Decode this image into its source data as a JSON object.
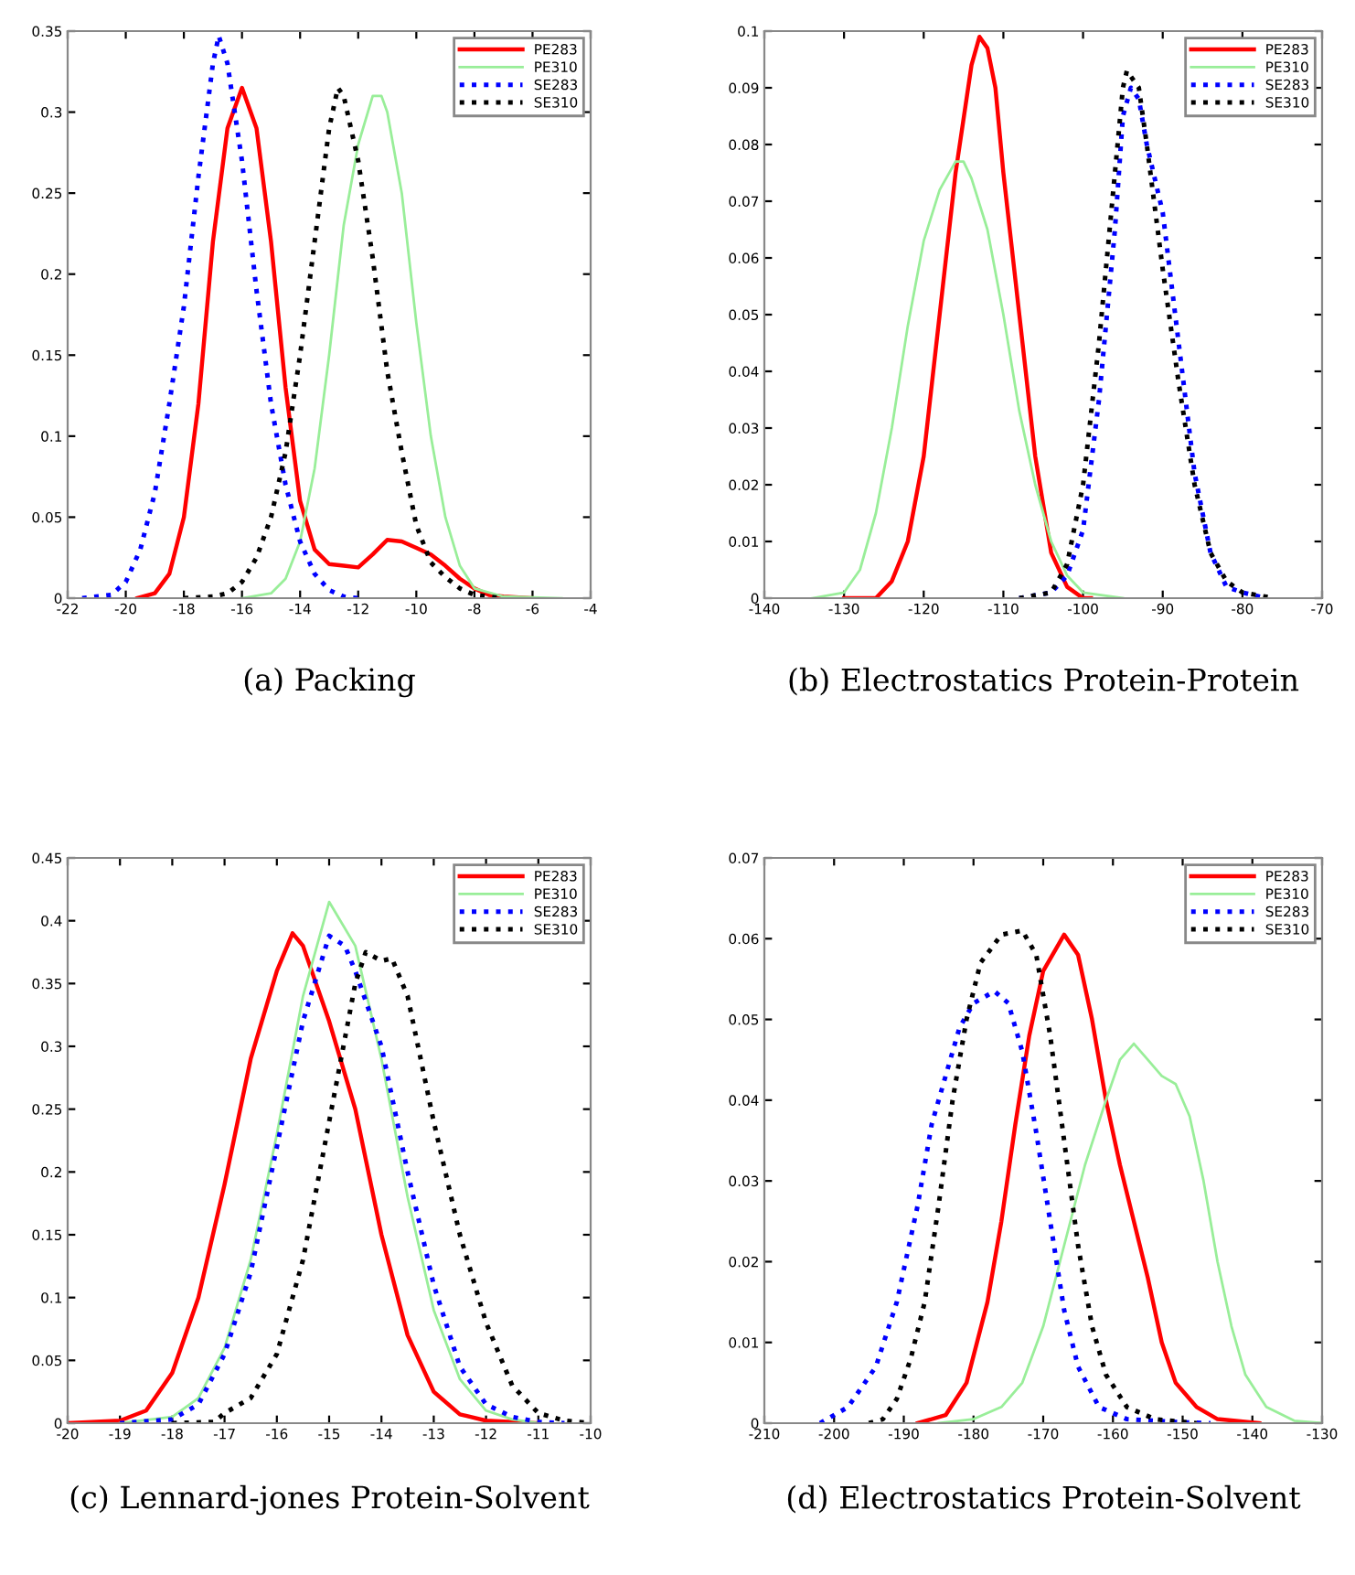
{
  "chart_data": [
    {
      "type": "line",
      "title": "(a) Packing",
      "xlim": [
        -22,
        -4
      ],
      "xticks": [
        -22,
        -20,
        -18,
        -16,
        -14,
        -12,
        -10,
        -8,
        -6,
        -4
      ],
      "ylim": [
        0,
        0.35
      ],
      "yticks": [
        0,
        0.05,
        0.1,
        0.15,
        0.2,
        0.25,
        0.3,
        0.35
      ],
      "grid": false,
      "legend": "top right",
      "series": [
        {
          "name": "PE283",
          "color": "#ff0000",
          "line_style": "solid",
          "x": [
            -19.6,
            -19,
            -18.5,
            -18,
            -17.5,
            -17,
            -16.5,
            -16,
            -15.5,
            -15,
            -14.5,
            -14,
            -13.5,
            -13,
            -12.5,
            -12,
            -11.5,
            -11,
            -10.5,
            -10,
            -9.5,
            -9,
            -8.5,
            -8,
            -7.5,
            -7,
            -6
          ],
          "values": [
            0,
            0.003,
            0.015,
            0.05,
            0.12,
            0.22,
            0.29,
            0.315,
            0.29,
            0.22,
            0.13,
            0.06,
            0.03,
            0.021,
            0.02,
            0.019,
            0.027,
            0.036,
            0.035,
            0.031,
            0.027,
            0.02,
            0.012,
            0.006,
            0.002,
            0.001,
            0
          ]
        },
        {
          "name": "PE310",
          "color": "#99ee99",
          "line_style": "solid",
          "x": [
            -16,
            -15,
            -14.5,
            -14,
            -13.5,
            -13,
            -12.5,
            -12,
            -11.5,
            -11.2,
            -11,
            -10.5,
            -10,
            -9.5,
            -9,
            -8.5,
            -8,
            -7,
            -5
          ],
          "values": [
            0,
            0.003,
            0.012,
            0.035,
            0.08,
            0.15,
            0.23,
            0.28,
            0.31,
            0.31,
            0.3,
            0.25,
            0.17,
            0.1,
            0.05,
            0.02,
            0.006,
            0.001,
            0
          ]
        },
        {
          "name": "SE283",
          "color": "#0000ff",
          "line_style": "dotted",
          "x": [
            -21.5,
            -20.5,
            -20,
            -19.5,
            -19,
            -18.5,
            -18,
            -17.5,
            -17,
            -16.8,
            -16.5,
            -16,
            -15.5,
            -15,
            -14.5,
            -14,
            -13.5,
            -13,
            -12.5,
            -12
          ],
          "values": [
            0,
            0.002,
            0.01,
            0.03,
            0.065,
            0.12,
            0.18,
            0.26,
            0.33,
            0.347,
            0.33,
            0.27,
            0.19,
            0.12,
            0.07,
            0.035,
            0.015,
            0.005,
            0.001,
            0
          ]
        },
        {
          "name": "SE310",
          "color": "#000000",
          "line_style": "dotted",
          "x": [
            -18,
            -17,
            -16.5,
            -16,
            -15.5,
            -15,
            -14.5,
            -14,
            -13.5,
            -13,
            -12.7,
            -12.5,
            -12,
            -11.5,
            -11,
            -10.5,
            -10,
            -9.5,
            -9,
            -8.5,
            -8,
            -7
          ],
          "values": [
            0,
            0.001,
            0.003,
            0.01,
            0.025,
            0.05,
            0.09,
            0.15,
            0.22,
            0.29,
            0.315,
            0.31,
            0.27,
            0.21,
            0.14,
            0.09,
            0.045,
            0.022,
            0.013,
            0.006,
            0.002,
            0
          ]
        }
      ]
    },
    {
      "type": "line",
      "title": "(b) Electrostatics Protein-Protein",
      "xlim": [
        -140,
        -70
      ],
      "xticks": [
        -140,
        -130,
        -120,
        -110,
        -100,
        -90,
        -80,
        -70
      ],
      "ylim": [
        0,
        0.1
      ],
      "yticks": [
        0,
        0.01,
        0.02,
        0.03,
        0.04,
        0.05,
        0.06,
        0.07,
        0.08,
        0.09,
        0.1
      ],
      "grid": false,
      "legend": "top right",
      "series": [
        {
          "name": "PE283",
          "color": "#ff0000",
          "line_style": "solid",
          "x": [
            -130,
            -126,
            -124,
            -122,
            -120,
            -118,
            -116,
            -114,
            -113,
            -112,
            -111,
            -110,
            -108,
            -106,
            -104,
            -102,
            -100,
            -99
          ],
          "values": [
            0,
            0,
            0.003,
            0.01,
            0.025,
            0.05,
            0.075,
            0.094,
            0.099,
            0.097,
            0.09,
            0.075,
            0.05,
            0.025,
            0.008,
            0.002,
            0,
            0
          ]
        },
        {
          "name": "PE310",
          "color": "#99ee99",
          "line_style": "solid",
          "x": [
            -134,
            -130,
            -128,
            -126,
            -124,
            -122,
            -120,
            -118,
            -116,
            -115,
            -114,
            -112,
            -110,
            -108,
            -106,
            -104,
            -102,
            -100,
            -95
          ],
          "values": [
            0,
            0.001,
            0.005,
            0.015,
            0.03,
            0.048,
            0.063,
            0.072,
            0.077,
            0.077,
            0.074,
            0.065,
            0.05,
            0.033,
            0.02,
            0.01,
            0.004,
            0.001,
            0
          ]
        },
        {
          "name": "SE283",
          "color": "#0000ff",
          "line_style": "dotted",
          "x": [
            -108,
            -104,
            -102,
            -100,
            -98,
            -96,
            -95,
            -94,
            -93,
            -92,
            -90,
            -88,
            -86,
            -84,
            -82,
            -80,
            -77
          ],
          "values": [
            0,
            0.001,
            0.004,
            0.012,
            0.035,
            0.065,
            0.085,
            0.09,
            0.088,
            0.08,
            0.068,
            0.045,
            0.022,
            0.008,
            0.002,
            0.001,
            0
          ]
        },
        {
          "name": "SE310",
          "color": "#000000",
          "line_style": "dotted",
          "x": [
            -108,
            -104,
            -102,
            -100,
            -98,
            -96,
            -95,
            -94.5,
            -93,
            -92,
            -90,
            -88,
            -86,
            -84,
            -82,
            -80,
            -76
          ],
          "values": [
            0,
            0.001,
            0.006,
            0.02,
            0.045,
            0.075,
            0.09,
            0.093,
            0.09,
            0.08,
            0.058,
            0.038,
            0.02,
            0.008,
            0.003,
            0.001,
            0
          ]
        }
      ]
    },
    {
      "type": "line",
      "title": "(c) Lennard-jones Protein-Solvent",
      "xlim": [
        -20,
        -10
      ],
      "xticks": [
        -20,
        -19,
        -18,
        -17,
        -16,
        -15,
        -14,
        -13,
        -12,
        -11,
        -10
      ],
      "ylim": [
        0,
        0.45
      ],
      "yticks": [
        0,
        0.05,
        0.1,
        0.15,
        0.2,
        0.25,
        0.3,
        0.35,
        0.4,
        0.45
      ],
      "grid": false,
      "legend": "top right",
      "series": [
        {
          "name": "PE283",
          "color": "#ff0000",
          "line_style": "solid",
          "x": [
            -20,
            -19,
            -18.5,
            -18,
            -17.5,
            -17,
            -16.5,
            -16,
            -15.7,
            -15.5,
            -15,
            -14.5,
            -14,
            -13.5,
            -13,
            -12.5,
            -12,
            -11
          ],
          "values": [
            0,
            0.002,
            0.01,
            0.04,
            0.1,
            0.19,
            0.29,
            0.36,
            0.39,
            0.38,
            0.32,
            0.25,
            0.15,
            0.07,
            0.025,
            0.007,
            0.002,
            0
          ]
        },
        {
          "name": "PE310",
          "color": "#99ee99",
          "line_style": "solid",
          "x": [
            -19,
            -18,
            -17.5,
            -17,
            -16.5,
            -16,
            -15.5,
            -15,
            -14.5,
            -14,
            -13.5,
            -13,
            -12.5,
            -12,
            -11.5,
            -11
          ],
          "values": [
            0,
            0.005,
            0.02,
            0.06,
            0.13,
            0.23,
            0.34,
            0.415,
            0.38,
            0.29,
            0.18,
            0.09,
            0.035,
            0.01,
            0.003,
            0
          ]
        },
        {
          "name": "SE283",
          "color": "#0000ff",
          "line_style": "dotted",
          "x": [
            -19,
            -18,
            -17.5,
            -17,
            -16.5,
            -16,
            -15.5,
            -15,
            -14.7,
            -14.5,
            -14,
            -13.5,
            -13,
            -12.5,
            -12,
            -11.5,
            -11,
            -10.5
          ],
          "values": [
            0,
            0.003,
            0.015,
            0.055,
            0.12,
            0.22,
            0.32,
            0.388,
            0.38,
            0.36,
            0.3,
            0.2,
            0.11,
            0.045,
            0.015,
            0.005,
            0.001,
            0
          ]
        },
        {
          "name": "SE310",
          "color": "#000000",
          "line_style": "dotted",
          "x": [
            -18,
            -17.2,
            -17,
            -16.5,
            -16,
            -15.5,
            -15,
            -14.5,
            -14.3,
            -14,
            -13.8,
            -13.5,
            -13,
            -12.5,
            -12,
            -11.5,
            -11,
            -10.5,
            -10
          ],
          "values": [
            0,
            0.001,
            0.008,
            0.02,
            0.055,
            0.13,
            0.24,
            0.35,
            0.375,
            0.368,
            0.37,
            0.34,
            0.24,
            0.15,
            0.08,
            0.03,
            0.008,
            0.002,
            0
          ]
        }
      ]
    },
    {
      "type": "line",
      "title": "(d) Electrostatics Protein-Solvent",
      "xlim": [
        -210,
        -130
      ],
      "xticks": [
        -210,
        -200,
        -190,
        -180,
        -170,
        -160,
        -150,
        -140,
        -130
      ],
      "ylim": [
        0,
        0.07
      ],
      "yticks": [
        0,
        0.01,
        0.02,
        0.03,
        0.04,
        0.05,
        0.06,
        0.07
      ],
      "grid": false,
      "legend": "top right",
      "series": [
        {
          "name": "PE283",
          "color": "#ff0000",
          "line_style": "solid",
          "x": [
            -188,
            -184,
            -181,
            -178,
            -176,
            -174,
            -172,
            -170,
            -167,
            -165,
            -163,
            -161,
            -159,
            -157,
            -155,
            -153,
            -151,
            -148,
            -145,
            -139
          ],
          "values": [
            0,
            0.001,
            0.005,
            0.015,
            0.025,
            0.037,
            0.048,
            0.056,
            0.0605,
            0.058,
            0.05,
            0.04,
            0.032,
            0.025,
            0.018,
            0.01,
            0.005,
            0.002,
            0.0005,
            0
          ]
        },
        {
          "name": "PE310",
          "color": "#99ee99",
          "line_style": "solid",
          "x": [
            -185,
            -180,
            -176,
            -173,
            -170,
            -167,
            -164,
            -161,
            -159,
            -157,
            -155,
            -153,
            -151,
            -149,
            -147,
            -145,
            -143,
            -141,
            -138,
            -134,
            -130
          ],
          "values": [
            0,
            0.0005,
            0.002,
            0.005,
            0.012,
            0.022,
            0.032,
            0.04,
            0.045,
            0.047,
            0.045,
            0.043,
            0.042,
            0.038,
            0.03,
            0.02,
            0.012,
            0.006,
            0.002,
            0.0003,
            0
          ]
        },
        {
          "name": "SE283",
          "color": "#0000ff",
          "line_style": "dotted",
          "x": [
            -202,
            -198,
            -194,
            -191,
            -188,
            -186,
            -184,
            -182,
            -180,
            -177,
            -175,
            -173,
            -171,
            -169,
            -167,
            -165,
            -162,
            -158,
            -150,
            -146
          ],
          "values": [
            0,
            0.002,
            0.007,
            0.015,
            0.027,
            0.037,
            0.043,
            0.049,
            0.052,
            0.0535,
            0.052,
            0.046,
            0.036,
            0.025,
            0.014,
            0.007,
            0.002,
            0.0005,
            0.0001,
            0
          ]
        },
        {
          "name": "SE310",
          "color": "#000000",
          "line_style": "dotted",
          "x": [
            -195,
            -193,
            -191,
            -189,
            -187,
            -185,
            -183,
            -181,
            -179,
            -176,
            -173,
            -171,
            -169,
            -167,
            -165,
            -163,
            -161,
            -158,
            -154,
            -148
          ],
          "values": [
            0,
            0.0005,
            0.003,
            0.008,
            0.015,
            0.027,
            0.04,
            0.05,
            0.057,
            0.0605,
            0.061,
            0.058,
            0.048,
            0.035,
            0.022,
            0.012,
            0.006,
            0.002,
            0.0005,
            0
          ]
        }
      ]
    }
  ]
}
